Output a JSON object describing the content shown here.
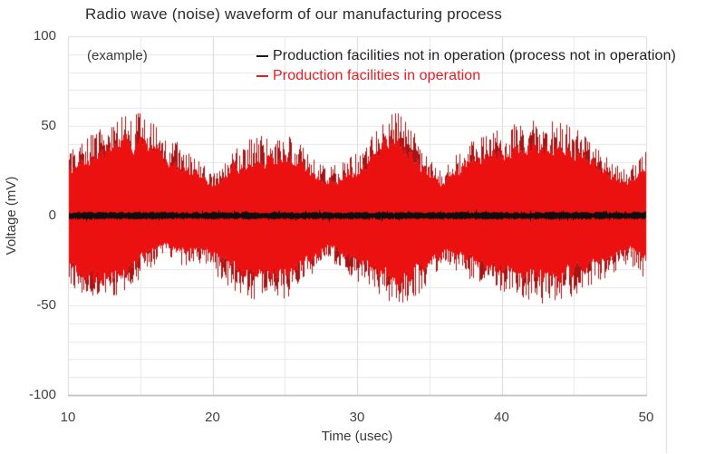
{
  "title": "Radio wave (noise) waveform of our manufacturing process",
  "annotation": "(example)",
  "colors": {
    "background": "#ffffff",
    "grid_minor": "#e8e8e8",
    "grid_major": "#d9d9d9",
    "plot_border": "#dedede",
    "plot_border_bottom": "#b6b6b6",
    "outer_guide_line": "#dcdcdc",
    "red_series": "#ec1111",
    "red_spike": "#a81414",
    "black_series": "#0e0e0e",
    "legend_red_text": "#ed1c24",
    "legend_black_text": "#212121"
  },
  "chart_data": {
    "type": "line",
    "subtype": "noise-waveform",
    "title": "Radio wave (noise) waveform of our manufacturing process",
    "xlabel": "Time (usec)",
    "ylabel": "Voltage (mV)",
    "xlim": [
      10,
      50
    ],
    "ylim": [
      -100,
      100
    ],
    "x_ticks": [
      10,
      20,
      30,
      40,
      50
    ],
    "y_ticks": [
      100,
      50,
      0,
      -50,
      -100
    ],
    "x_minor_step": 5,
    "y_minor_step": 10,
    "grid": true,
    "legend_position": "top-inside",
    "series": [
      {
        "name": "Production facilities not in operation (process not in operation)",
        "color": "#1a1a1a",
        "kind": "noise-band-around-zero",
        "typical_amplitude_mV": 2,
        "peak_amplitude_mV": 4
      },
      {
        "name": "Production facilities in operation",
        "color": "#ed1c24",
        "kind": "noise-band-around-zero",
        "spike_peak_mV": 57,
        "upper_envelope_mV": [
          [
            10,
            32
          ],
          [
            11,
            36
          ],
          [
            12,
            41
          ],
          [
            13,
            45
          ],
          [
            14,
            48
          ],
          [
            15,
            50
          ],
          [
            15.7,
            46
          ],
          [
            16.5,
            40
          ],
          [
            17.5,
            35
          ],
          [
            18.5,
            31
          ],
          [
            19.3,
            25
          ],
          [
            19.9,
            20
          ],
          [
            20.5,
            24
          ],
          [
            21.5,
            31
          ],
          [
            22.5,
            36
          ],
          [
            23.5,
            38
          ],
          [
            24.5,
            37
          ],
          [
            25.3,
            39
          ],
          [
            26.2,
            33
          ],
          [
            27.2,
            27
          ],
          [
            28,
            23
          ],
          [
            28.8,
            25
          ],
          [
            29.6,
            29
          ],
          [
            30.5,
            34
          ],
          [
            31.3,
            42
          ],
          [
            32,
            51
          ],
          [
            32.7,
            52
          ],
          [
            33.3,
            45
          ],
          [
            34.2,
            37
          ],
          [
            35,
            27
          ],
          [
            35.8,
            22
          ],
          [
            36.5,
            27
          ],
          [
            37.2,
            32
          ],
          [
            38,
            36
          ],
          [
            39,
            40
          ],
          [
            40,
            42
          ],
          [
            41,
            44
          ],
          [
            42,
            46
          ],
          [
            42.8,
            48
          ],
          [
            43.6,
            46
          ],
          [
            44.5,
            44
          ],
          [
            45.5,
            41
          ],
          [
            46.3,
            36
          ],
          [
            47.2,
            29
          ],
          [
            48,
            24
          ],
          [
            48.7,
            21
          ],
          [
            49.3,
            26
          ],
          [
            50,
            32
          ]
        ],
        "lower_envelope_mV": [
          [
            10,
            34
          ],
          [
            11,
            38
          ],
          [
            12,
            42
          ],
          [
            13,
            40
          ],
          [
            14,
            36
          ],
          [
            15,
            30
          ],
          [
            15.8,
            24
          ],
          [
            16.6,
            19
          ],
          [
            17.4,
            22
          ],
          [
            18.3,
            25
          ],
          [
            19.2,
            23
          ],
          [
            20,
            27
          ],
          [
            21,
            33
          ],
          [
            22,
            38
          ],
          [
            23,
            40
          ],
          [
            24,
            38
          ],
          [
            25,
            40
          ],
          [
            26,
            34
          ],
          [
            27,
            27
          ],
          [
            27.8,
            22
          ],
          [
            28.7,
            24
          ],
          [
            29.5,
            29
          ],
          [
            30.4,
            33
          ],
          [
            31.2,
            36
          ],
          [
            32,
            41
          ],
          [
            32.8,
            46
          ],
          [
            33.6,
            42
          ],
          [
            34.4,
            36
          ],
          [
            35.2,
            29
          ],
          [
            36,
            24
          ],
          [
            37,
            28
          ],
          [
            38,
            31
          ],
          [
            39,
            34
          ],
          [
            40,
            36
          ],
          [
            41,
            38
          ],
          [
            42,
            40
          ],
          [
            43,
            42
          ],
          [
            44,
            40
          ],
          [
            45,
            38
          ],
          [
            46,
            34
          ],
          [
            47,
            30
          ],
          [
            48,
            26
          ],
          [
            48.8,
            23
          ],
          [
            49.4,
            26
          ],
          [
            50,
            31
          ]
        ]
      }
    ]
  }
}
